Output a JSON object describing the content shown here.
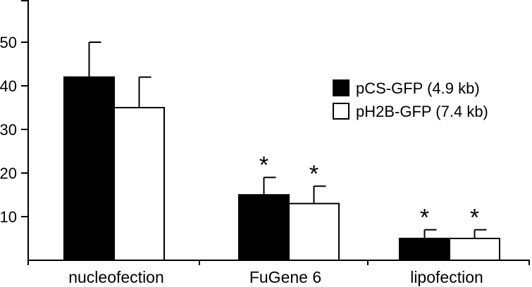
{
  "chart_data": {
    "type": "bar",
    "categories": [
      "nucleofection",
      "FuGene 6",
      "lipofection"
    ],
    "series": [
      {
        "name": "pCS-GFP (4.9 kb)",
        "color": "#000000",
        "values": [
          42,
          15,
          5
        ],
        "errors": [
          8,
          4,
          2
        ],
        "significance": [
          "",
          "*",
          "*"
        ]
      },
      {
        "name": "pH2B-GFP (7.4 kb)",
        "color": "#ffffff",
        "values": [
          35,
          13,
          5
        ],
        "errors": [
          7,
          4,
          2
        ],
        "significance": [
          "",
          "*",
          "*"
        ]
      }
    ],
    "y_ticks": [
      10,
      20,
      30,
      40,
      50
    ],
    "ylim": [
      0,
      60
    ],
    "xlabel": "",
    "ylabel": "",
    "title": "",
    "legend_position": "right"
  }
}
